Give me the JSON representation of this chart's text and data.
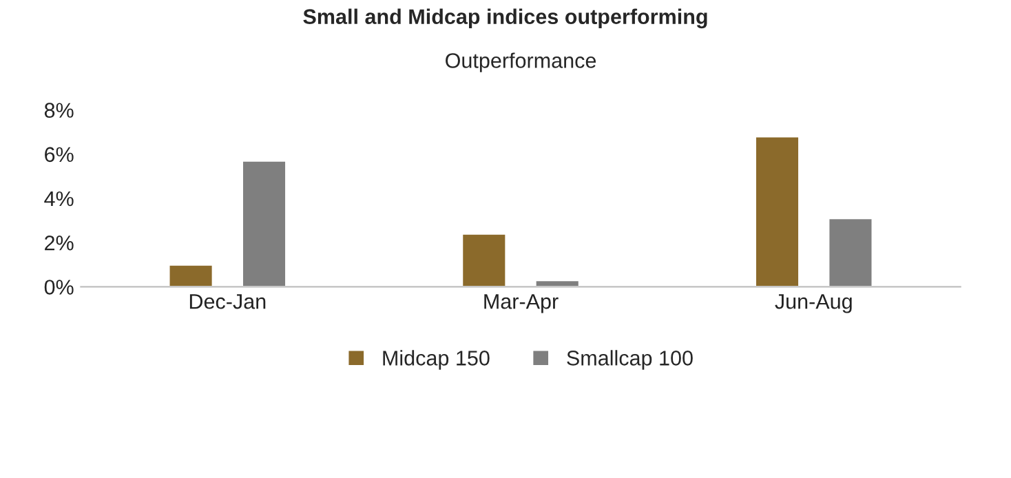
{
  "chart_data": {
    "type": "bar",
    "title": "Small and Midcap indices outperforming",
    "subtitle": "Outperformance",
    "categories": [
      "Dec-Jan",
      "Mar-Apr",
      "Jun-Aug"
    ],
    "series": [
      {
        "name": "Midcap 150",
        "color": "#8b6a2b",
        "values": [
          1.0,
          2.4,
          6.8
        ]
      },
      {
        "name": "Smallcap 100",
        "color": "#7f7f7f",
        "values": [
          5.7,
          0.3,
          3.1
        ]
      }
    ],
    "ylim": [
      0,
      8
    ],
    "yticks": [
      {
        "value": 0,
        "label": "0%"
      },
      {
        "value": 2,
        "label": "2%"
      },
      {
        "value": 4,
        "label": "4%"
      },
      {
        "value": 6,
        "label": "6%"
      },
      {
        "value": 8,
        "label": "8%"
      }
    ],
    "grid": false,
    "legend": "bottom"
  }
}
